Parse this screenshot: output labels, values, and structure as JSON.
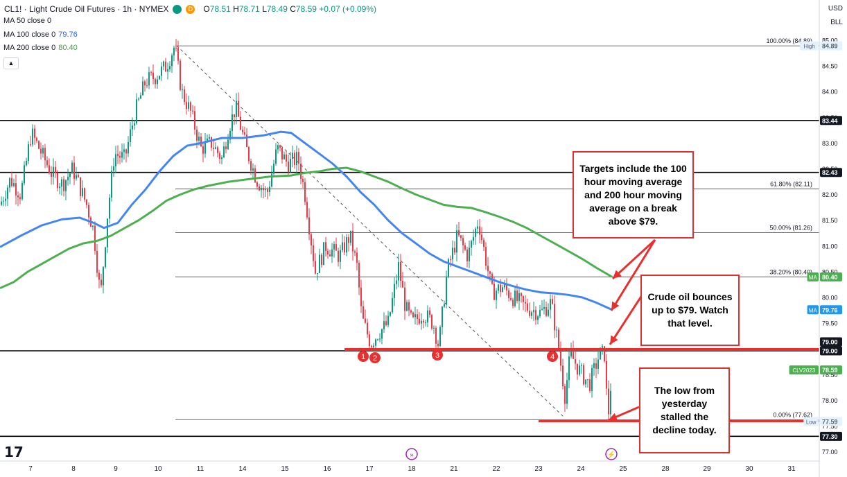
{
  "header": {
    "symbol": "CL1! · Light Crude Oil Futures · 1h · NYMEX",
    "open_label": "O",
    "open": "78.51",
    "high_label": "H",
    "high": "78.71",
    "low_label": "L",
    "low": "78.49",
    "close_label": "C",
    "close": "78.59",
    "change": "+0.07 (+0.09%)",
    "delayed_badge": "D",
    "currency": "USD",
    "unit": "BLL"
  },
  "indicators": [
    {
      "label": "MA 50 close 0",
      "value": "",
      "color": "#2962ff"
    },
    {
      "label": "MA 100 close 0",
      "value": "79.76",
      "color": "#2962ff"
    },
    {
      "label": "MA 200 close 0",
      "value": "80.40",
      "color": "#43a047"
    }
  ],
  "colors": {
    "up": "#089981",
    "down": "#f23645",
    "ma100": "#4285f4",
    "ma200": "#4caf50",
    "annot": "#e8302f"
  },
  "annotations": [
    {
      "text": "Targets include the 100 hour moving average and 200 hour moving average on a break above $79."
    },
    {
      "text": "Crude oil bounces up to $79. Watch that level."
    },
    {
      "text": "The low from yesterday stalled the decline today."
    }
  ],
  "tv_logo": "17",
  "chart_data": {
    "type": "candlestick",
    "ylim": [
      77.0,
      85.0
    ],
    "y_ticks": [
      "85.00",
      "84.50",
      "84.00",
      "83.50",
      "83.00",
      "82.50",
      "82.00",
      "81.50",
      "81.00",
      "80.50",
      "80.00",
      "79.50",
      "79.00",
      "78.50",
      "78.00",
      "77.50",
      "77.00"
    ],
    "x_ticks": [
      "7",
      "8",
      "9",
      "10",
      "11",
      "14",
      "15",
      "16",
      "17",
      "18",
      "21",
      "22",
      "23",
      "24",
      "25",
      "28",
      "29",
      "30",
      "31"
    ],
    "horizontal_levels": [
      {
        "label": "83.44",
        "value": 83.44
      },
      {
        "label": "82.43",
        "value": 82.43
      },
      {
        "label": "79.00",
        "value": 79.0
      },
      {
        "label": "77.30",
        "value": 77.3
      }
    ],
    "fibonacci": {
      "from_high": 84.89,
      "to_low": 77.62,
      "levels": [
        {
          "label": "100.00% (84.89)",
          "value": 84.89
        },
        {
          "label": "61.80% (82.11)",
          "value": 82.11
        },
        {
          "label": "50.00% (81.26)",
          "value": 81.26
        },
        {
          "label": "38.20% (80.40)",
          "value": 80.4
        },
        {
          "label": "0.00% (77.62)",
          "value": 77.62
        }
      ]
    },
    "price_tags": [
      {
        "label": "High",
        "value": "84.89",
        "y": 84.89,
        "style": "hl"
      },
      {
        "label": "",
        "value": "83.44",
        "y": 83.44,
        "style": "dark"
      },
      {
        "label": "",
        "value": "82.43",
        "y": 82.43,
        "style": "dark"
      },
      {
        "label": "MA",
        "value": "80.40",
        "y": 80.4,
        "style": "green"
      },
      {
        "label": "MA",
        "value": "79.76",
        "y": 79.76,
        "style": "blue"
      },
      {
        "label": "",
        "value": "79.00",
        "y": 79.1,
        "style": "dark"
      },
      {
        "label": "",
        "value": "79.00",
        "y": 78.93,
        "style": "dark"
      },
      {
        "label": "CLV2023",
        "value": "78.59",
        "y": 78.59,
        "style": "teal"
      },
      {
        "label": "Low",
        "value": "77.59",
        "y": 77.59,
        "style": "hl"
      },
      {
        "label": "",
        "value": "77.30",
        "y": 77.3,
        "style": "dark"
      }
    ],
    "test_markers": [
      "1",
      "2",
      "3",
      "4"
    ],
    "series": [
      {
        "name": "MA 100 close 0",
        "last": 79.76,
        "points": [
          [
            0,
            80.98
          ],
          [
            30,
            81.2
          ],
          [
            60,
            81.4
          ],
          [
            90,
            81.52
          ],
          [
            115,
            81.55
          ],
          [
            135,
            81.45
          ],
          [
            150,
            81.35
          ],
          [
            170,
            81.45
          ],
          [
            190,
            81.8
          ],
          [
            210,
            82.1
          ],
          [
            230,
            82.45
          ],
          [
            250,
            82.75
          ],
          [
            270,
            82.95
          ],
          [
            290,
            83.0
          ],
          [
            320,
            83.1
          ],
          [
            350,
            83.1
          ],
          [
            380,
            83.15
          ],
          [
            405,
            83.22
          ],
          [
            420,
            83.2
          ],
          [
            440,
            83.0
          ],
          [
            460,
            82.8
          ],
          [
            480,
            82.6
          ],
          [
            500,
            82.35
          ],
          [
            520,
            82.05
          ],
          [
            540,
            81.8
          ],
          [
            560,
            81.5
          ],
          [
            580,
            81.25
          ],
          [
            600,
            81.05
          ],
          [
            620,
            80.85
          ],
          [
            640,
            80.7
          ],
          [
            660,
            80.6
          ],
          [
            680,
            80.5
          ],
          [
            700,
            80.4
          ],
          [
            720,
            80.3
          ],
          [
            740,
            80.22
          ],
          [
            760,
            80.15
          ],
          [
            780,
            80.1
          ],
          [
            800,
            80.08
          ],
          [
            820,
            80.05
          ],
          [
            840,
            80.0
          ],
          [
            860,
            79.9
          ],
          [
            883,
            79.76
          ]
        ]
      },
      {
        "name": "MA 200 close 0",
        "last": 80.4,
        "points": [
          [
            0,
            80.18
          ],
          [
            20,
            80.3
          ],
          [
            40,
            80.5
          ],
          [
            60,
            80.65
          ],
          [
            80,
            80.8
          ],
          [
            100,
            80.95
          ],
          [
            120,
            81.05
          ],
          [
            140,
            81.1
          ],
          [
            160,
            81.2
          ],
          [
            180,
            81.35
          ],
          [
            200,
            81.5
          ],
          [
            220,
            81.68
          ],
          [
            240,
            81.88
          ],
          [
            260,
            82.0
          ],
          [
            280,
            82.1
          ],
          [
            300,
            82.17
          ],
          [
            330,
            82.25
          ],
          [
            360,
            82.3
          ],
          [
            390,
            82.35
          ],
          [
            420,
            82.37
          ],
          [
            440,
            82.42
          ],
          [
            460,
            82.45
          ],
          [
            480,
            82.5
          ],
          [
            500,
            82.52
          ],
          [
            520,
            82.45
          ],
          [
            540,
            82.35
          ],
          [
            560,
            82.25
          ],
          [
            580,
            82.12
          ],
          [
            600,
            82.0
          ],
          [
            620,
            81.9
          ],
          [
            640,
            81.8
          ],
          [
            660,
            81.76
          ],
          [
            680,
            81.74
          ],
          [
            700,
            81.66
          ],
          [
            720,
            81.57
          ],
          [
            740,
            81.47
          ],
          [
            760,
            81.35
          ],
          [
            780,
            81.2
          ],
          [
            800,
            81.05
          ],
          [
            820,
            80.9
          ],
          [
            840,
            80.75
          ],
          [
            860,
            80.58
          ],
          [
            883,
            80.4
          ]
        ]
      }
    ]
  }
}
